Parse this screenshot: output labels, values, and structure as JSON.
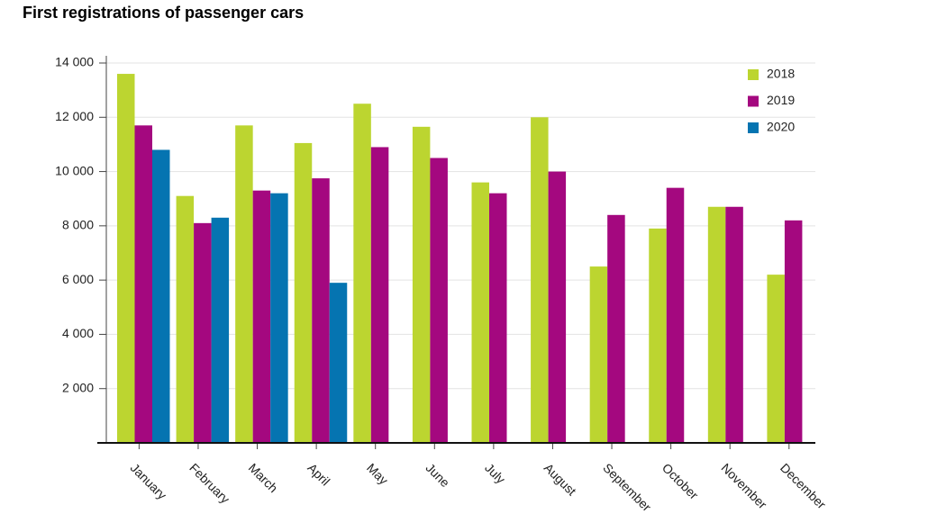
{
  "chart_data": {
    "type": "bar",
    "title": "First registrations of passenger cars",
    "categories": [
      "January",
      "February",
      "March",
      "April",
      "May",
      "June",
      "July",
      "August",
      "September",
      "October",
      "November",
      "December"
    ],
    "series": [
      {
        "name": "2018",
        "color": "#bcd530",
        "values": [
          13600,
          9100,
          11700,
          11050,
          12500,
          11650,
          9600,
          12000,
          6500,
          7900,
          8700,
          6200
        ]
      },
      {
        "name": "2019",
        "color": "#a4087f",
        "values": [
          11700,
          8100,
          9300,
          9750,
          10900,
          10500,
          9200,
          10000,
          8400,
          9400,
          8700,
          8200
        ]
      },
      {
        "name": "2020",
        "color": "#0574b1",
        "values": [
          10800,
          8300,
          9200,
          5900,
          null,
          null,
          null,
          null,
          null,
          null,
          null,
          null
        ]
      }
    ],
    "ylim": [
      0,
      14000
    ],
    "yticks": [
      {
        "value": 2000,
        "label": "2 000"
      },
      {
        "value": 4000,
        "label": "4 000"
      },
      {
        "value": 6000,
        "label": "6 000"
      },
      {
        "value": 8000,
        "label": "8 000"
      },
      {
        "value": 10000,
        "label": "10 000"
      },
      {
        "value": 12000,
        "label": "12 000"
      },
      {
        "value": 14000,
        "label": "14 000"
      }
    ],
    "grid": true,
    "legend": "top-right"
  }
}
